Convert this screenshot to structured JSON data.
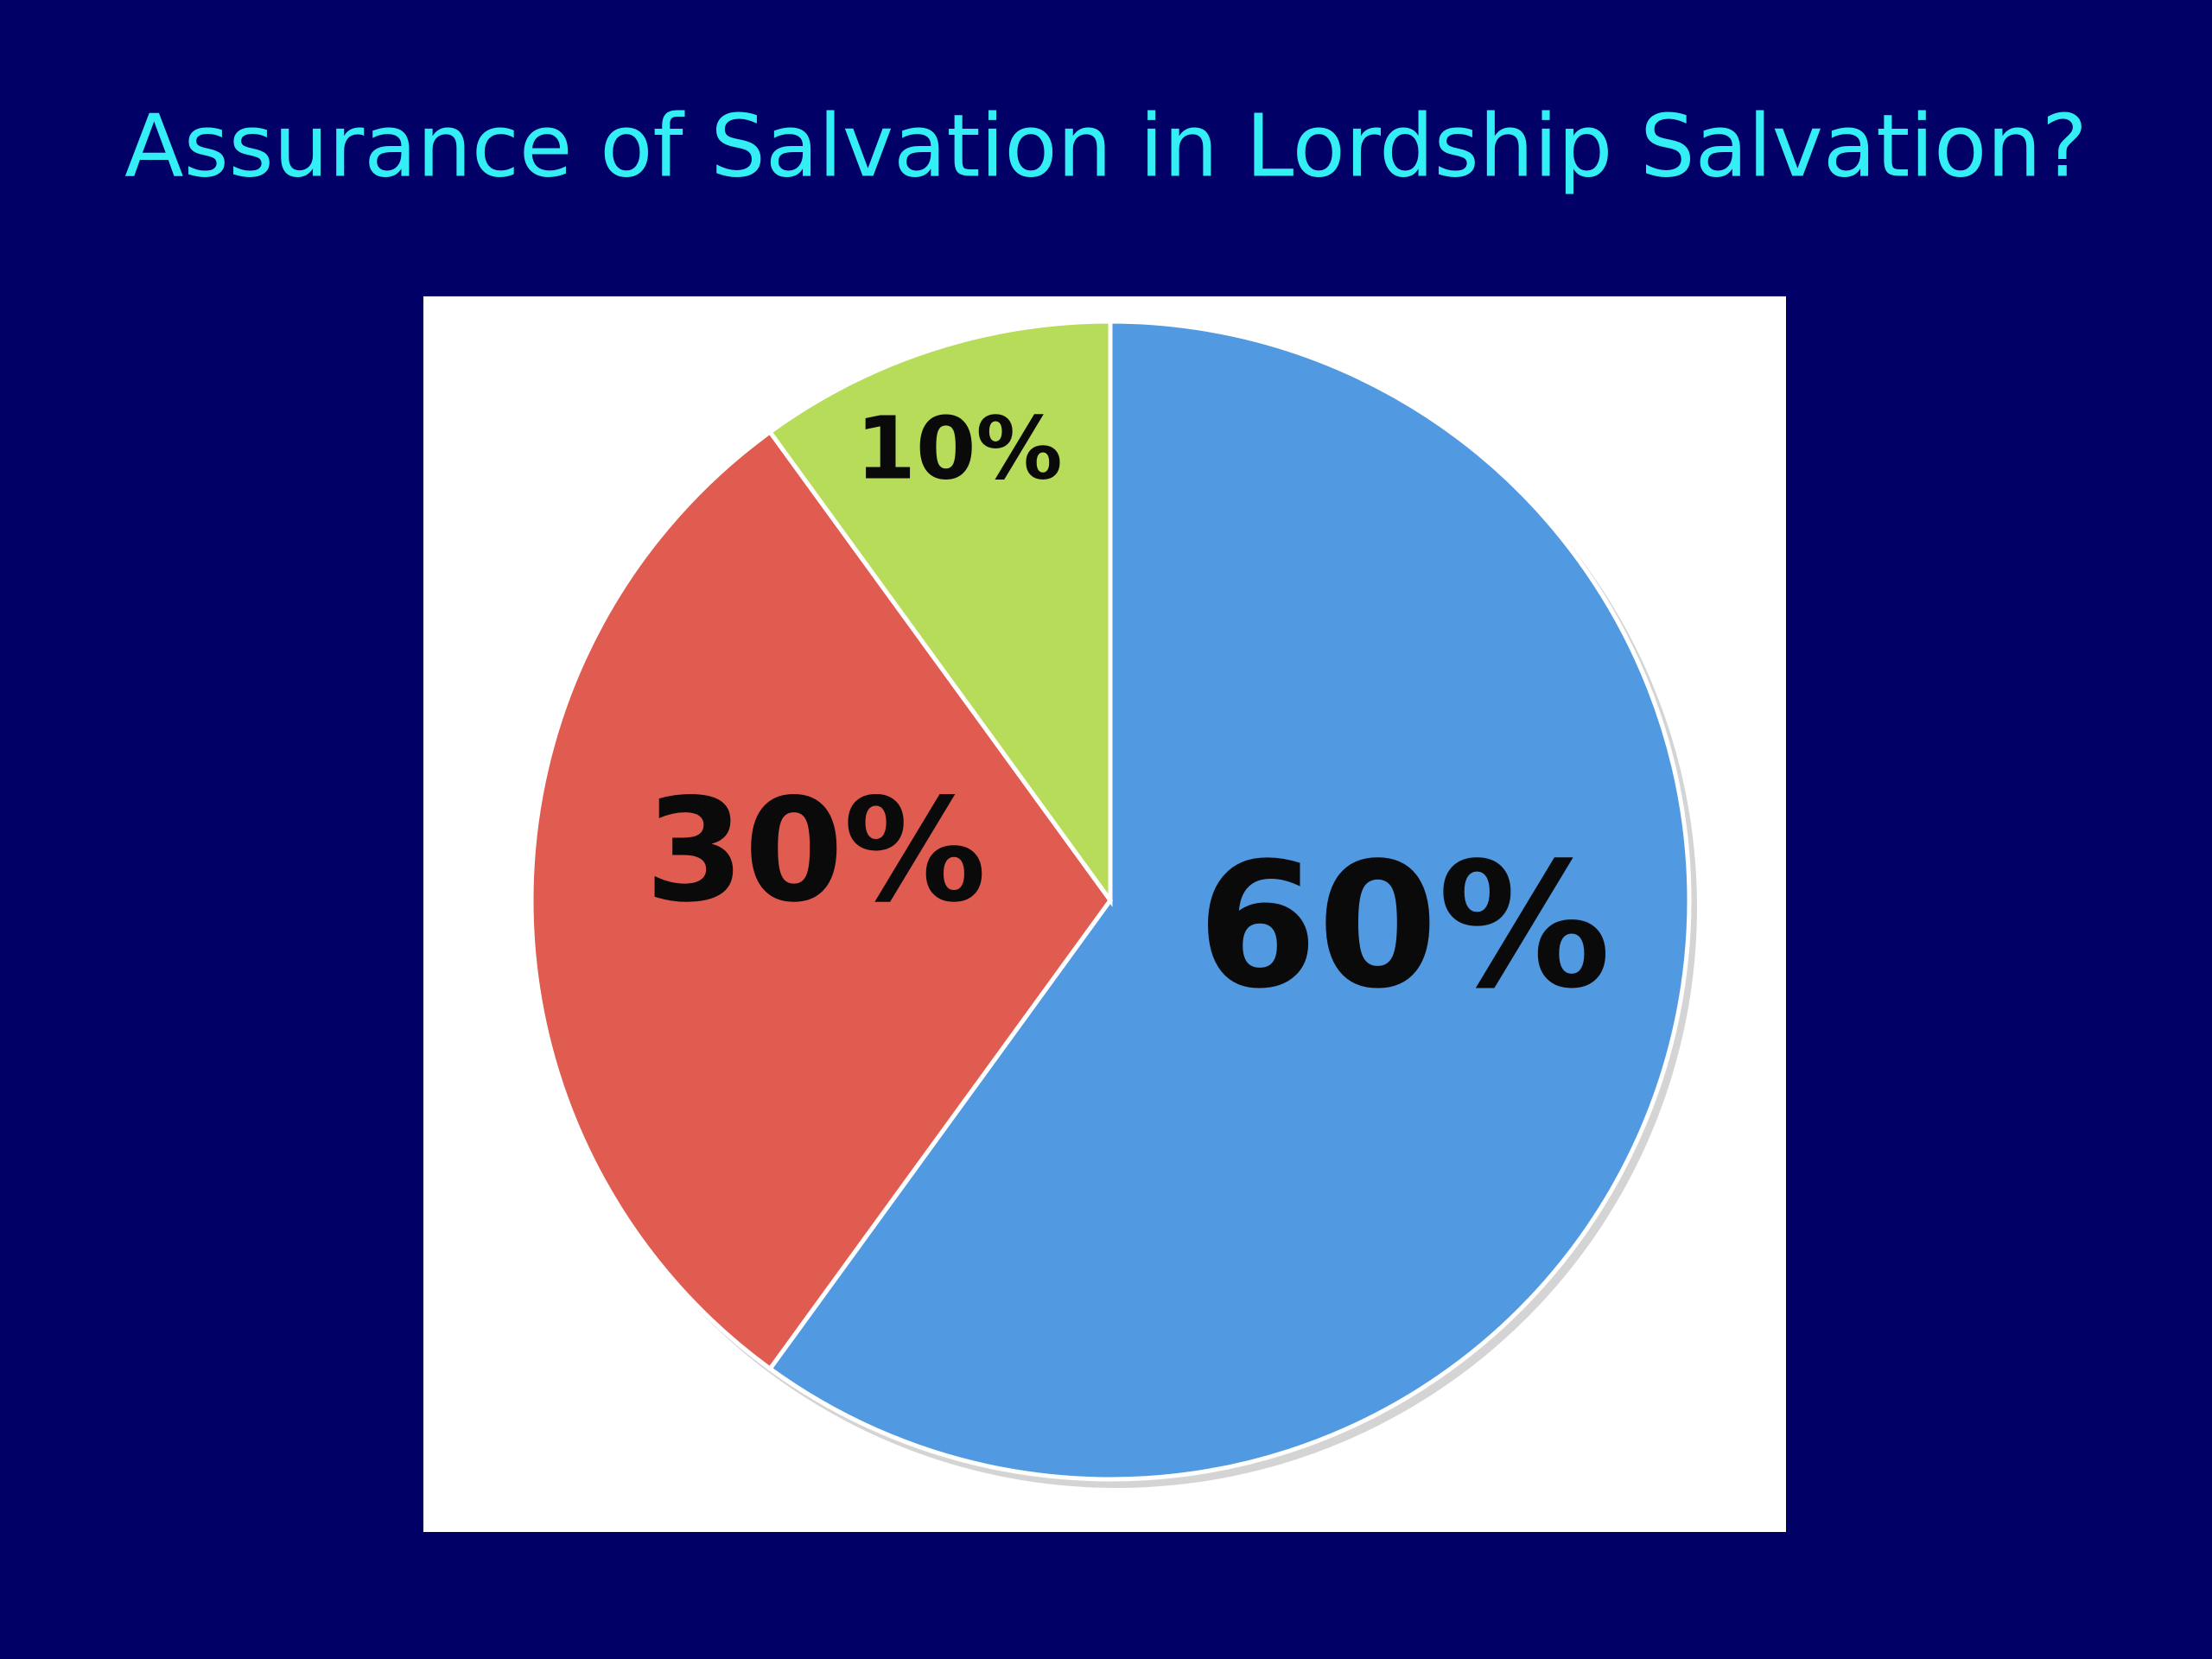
{
  "chart_data": {
    "type": "pie",
    "title": "Assurance of Salvation in Lordship Salvation?",
    "values": [
      60,
      30,
      10
    ],
    "value_labels": [
      "60%",
      "30%",
      "10%"
    ],
    "colors": [
      "#5199e1",
      "#e05b50",
      "#b6dc5a"
    ]
  }
}
